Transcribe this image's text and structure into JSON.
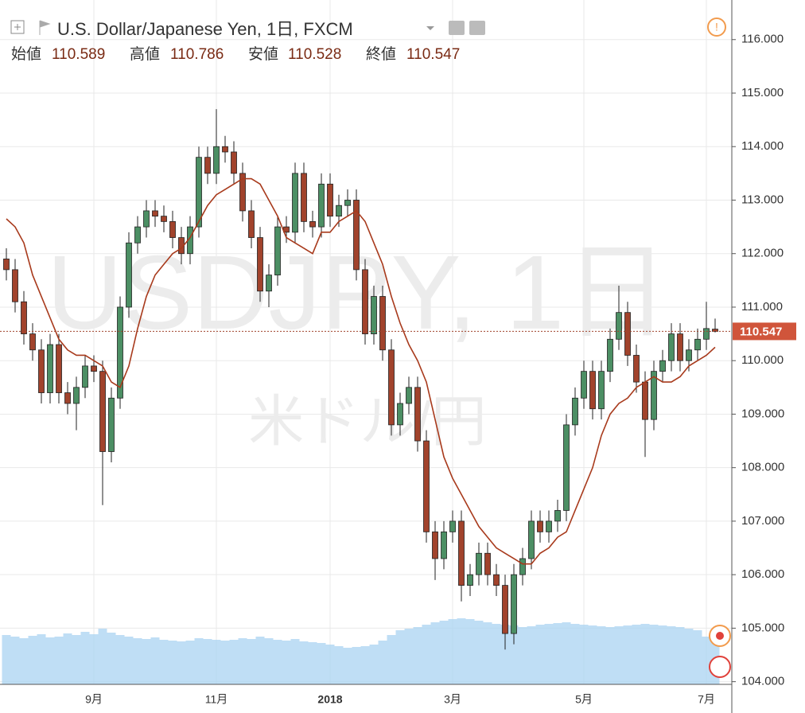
{
  "chart_data": {
    "type": "candlestick",
    "title": "U.S. Dollar/Japanese Yen, 1日, FXCM",
    "header_labels": {
      "open": "始値",
      "high": "高値",
      "low": "安値",
      "close": "終値"
    },
    "watermark": [
      "USDJPY, 1日",
      "米ドル/円"
    ],
    "categories": [
      null,
      null,
      null,
      null,
      null,
      null,
      null,
      null,
      null,
      null,
      "9月",
      null,
      null,
      null,
      null,
      null,
      null,
      null,
      null,
      null,
      null,
      null,
      null,
      null,
      "11月",
      null,
      null,
      null,
      null,
      null,
      null,
      null,
      null,
      null,
      null,
      null,
      null,
      "2018",
      null,
      null,
      null,
      null,
      null,
      null,
      null,
      null,
      null,
      null,
      null,
      null,
      null,
      "3月",
      null,
      null,
      null,
      null,
      null,
      null,
      null,
      null,
      null,
      null,
      null,
      null,
      null,
      null,
      "5月",
      null,
      null,
      null,
      null,
      null,
      null,
      null,
      null,
      null,
      null,
      null,
      null,
      null,
      "7月",
      null
    ],
    "open": [
      111.9,
      111.7,
      111.1,
      110.5,
      110.2,
      109.4,
      110.3,
      109.4,
      109.2,
      109.5,
      109.9,
      109.8,
      108.3,
      109.3,
      111.0,
      112.2,
      112.5,
      112.8,
      112.7,
      112.6,
      112.3,
      112.0,
      112.5,
      113.8,
      113.5,
      114.0,
      113.9,
      113.5,
      112.8,
      112.3,
      111.3,
      111.6,
      112.5,
      112.4,
      113.5,
      112.6,
      112.5,
      113.3,
      112.7,
      112.9,
      113.0,
      111.7,
      110.5,
      111.2,
      110.2,
      108.8,
      109.2,
      109.5,
      108.5,
      106.8,
      106.3,
      106.8,
      107.0,
      105.8,
      106.0,
      106.4,
      106.0,
      105.8,
      104.9,
      106.0,
      106.3,
      107.0,
      106.8,
      107.0,
      107.2,
      108.8,
      109.3,
      109.8,
      109.1,
      109.8,
      110.4,
      110.9,
      110.1,
      109.6,
      108.9,
      109.8,
      110.0,
      110.5,
      110.0,
      110.2,
      110.4,
      110.589
    ],
    "high": [
      112.1,
      111.9,
      111.3,
      110.7,
      110.4,
      110.5,
      110.5,
      109.6,
      109.7,
      110.1,
      110.1,
      110.0,
      109.5,
      111.2,
      112.4,
      112.7,
      113.0,
      113.0,
      112.9,
      112.8,
      112.5,
      112.7,
      114.0,
      114.0,
      114.7,
      114.2,
      114.1,
      113.7,
      113.0,
      112.5,
      111.8,
      112.7,
      112.7,
      113.7,
      113.7,
      112.8,
      113.5,
      113.5,
      113.1,
      113.2,
      113.2,
      111.9,
      111.4,
      111.4,
      110.4,
      109.4,
      109.7,
      109.7,
      108.7,
      107.0,
      107.0,
      107.2,
      107.2,
      106.2,
      106.6,
      106.6,
      106.2,
      106.0,
      106.2,
      106.5,
      107.2,
      107.2,
      107.2,
      107.4,
      109.0,
      109.5,
      110.0,
      110.0,
      110.0,
      110.6,
      111.4,
      111.1,
      110.3,
      109.8,
      110.0,
      110.2,
      110.7,
      110.7,
      110.4,
      110.6,
      111.1,
      110.786
    ],
    "low": [
      111.5,
      110.9,
      110.3,
      110.0,
      109.2,
      109.2,
      109.2,
      109.0,
      108.7,
      109.3,
      109.6,
      107.3,
      108.1,
      109.1,
      110.8,
      112.0,
      112.3,
      112.5,
      112.4,
      112.1,
      111.8,
      111.8,
      112.3,
      113.3,
      113.3,
      113.7,
      113.3,
      112.6,
      112.1,
      111.1,
      111.0,
      111.4,
      112.2,
      112.2,
      112.4,
      112.3,
      112.3,
      112.5,
      112.5,
      112.7,
      111.5,
      110.3,
      110.3,
      110.0,
      108.6,
      108.6,
      109.0,
      108.3,
      106.6,
      105.9,
      106.1,
      106.6,
      105.5,
      105.6,
      105.8,
      105.8,
      105.6,
      104.6,
      104.7,
      105.8,
      106.1,
      106.6,
      106.6,
      106.8,
      107.0,
      108.6,
      109.1,
      108.9,
      108.9,
      109.6,
      110.2,
      109.9,
      109.4,
      108.2,
      108.7,
      109.6,
      109.8,
      109.8,
      109.8,
      110.0,
      110.2,
      110.528
    ],
    "close": [
      111.7,
      111.1,
      110.5,
      110.2,
      109.4,
      110.3,
      109.4,
      109.2,
      109.5,
      109.9,
      109.8,
      108.3,
      109.3,
      111.0,
      112.2,
      112.5,
      112.8,
      112.7,
      112.6,
      112.3,
      112.0,
      112.5,
      113.8,
      113.5,
      114.0,
      113.9,
      113.5,
      112.8,
      112.3,
      111.3,
      111.6,
      112.5,
      112.4,
      113.5,
      112.6,
      112.5,
      113.3,
      112.7,
      112.9,
      113.0,
      111.7,
      110.5,
      111.2,
      110.2,
      108.8,
      109.2,
      109.5,
      108.5,
      106.8,
      106.3,
      106.8,
      107.0,
      105.8,
      106.0,
      106.4,
      106.0,
      105.8,
      104.9,
      106.0,
      106.3,
      107.0,
      106.8,
      107.0,
      107.2,
      108.8,
      109.3,
      109.8,
      109.1,
      109.8,
      110.4,
      110.9,
      110.1,
      109.6,
      108.9,
      109.8,
      110.0,
      110.5,
      110.0,
      110.2,
      110.4,
      110.6,
      110.547
    ],
    "up_color": "#4c8f64",
    "down_color": "#a1432c",
    "ma": {
      "color": "#a83a1c",
      "values": [
        112.65,
        112.5,
        112.2,
        111.6,
        111.2,
        110.8,
        110.4,
        110.2,
        110.1,
        110.1,
        110.0,
        109.9,
        109.6,
        109.5,
        109.9,
        110.6,
        111.2,
        111.6,
        111.8,
        112.0,
        112.1,
        112.3,
        112.6,
        112.9,
        113.1,
        113.2,
        113.3,
        113.4,
        113.4,
        113.3,
        113.0,
        112.7,
        112.3,
        112.2,
        112.1,
        112.0,
        112.4,
        112.4,
        112.6,
        112.7,
        112.8,
        112.6,
        112.2,
        111.8,
        111.2,
        110.7,
        110.3,
        110.0,
        109.6,
        108.9,
        108.2,
        107.8,
        107.5,
        107.2,
        106.9,
        106.7,
        106.5,
        106.4,
        106.3,
        106.2,
        106.2,
        106.4,
        106.5,
        106.7,
        106.8,
        107.2,
        107.6,
        108.0,
        108.6,
        109.0,
        109.2,
        109.3,
        109.5,
        109.6,
        109.7,
        109.6,
        109.6,
        109.7,
        109.9,
        110.0,
        110.1,
        110.25
      ]
    },
    "volume": {
      "color": "#a9d3f2",
      "lim": [
        0,
        100
      ],
      "values": [
        62,
        60,
        58,
        61,
        63,
        59,
        60,
        64,
        62,
        66,
        63,
        70,
        65,
        62,
        60,
        58,
        57,
        59,
        56,
        55,
        54,
        55,
        58,
        57,
        56,
        55,
        56,
        58,
        57,
        60,
        58,
        56,
        55,
        57,
        54,
        53,
        52,
        50,
        48,
        46,
        47,
        48,
        50,
        55,
        62,
        68,
        70,
        72,
        75,
        78,
        80,
        82,
        83,
        82,
        80,
        78,
        76,
        75,
        74,
        72,
        73,
        75,
        76,
        77,
        78,
        76,
        75,
        74,
        73,
        72,
        73,
        74,
        75,
        76,
        75,
        74,
        73,
        72,
        70,
        68,
        60,
        55
      ]
    },
    "ylim": [
      103.95,
      116.74
    ],
    "yticks": [
      {
        "value": 104,
        "label": "104.000"
      },
      {
        "value": 105,
        "label": "105.000"
      },
      {
        "value": 106,
        "label": "106.000"
      },
      {
        "value": 107,
        "label": "107.000"
      },
      {
        "value": 108,
        "label": "108.000"
      },
      {
        "value": 109,
        "label": "109.000"
      },
      {
        "value": 110,
        "label": "110.000"
      },
      {
        "value": 111,
        "label": "111.000"
      },
      {
        "value": 112,
        "label": "112.000"
      },
      {
        "value": 113,
        "label": "113.000"
      },
      {
        "value": 114,
        "label": "114.000"
      },
      {
        "value": 115,
        "label": "115.000"
      },
      {
        "value": 116,
        "label": "116.000"
      }
    ],
    "grid": true
  }
}
